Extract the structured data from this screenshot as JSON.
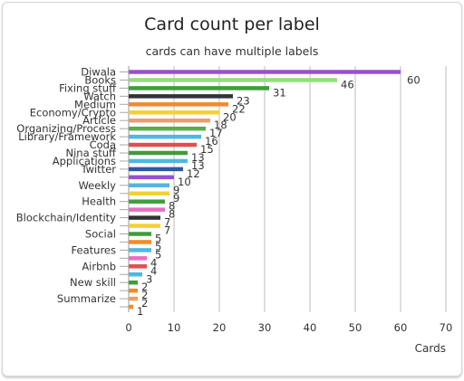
{
  "chart_data": {
    "type": "bar",
    "orientation": "horizontal",
    "title": "Card count per label",
    "subtitle": "cards can have multiple labels",
    "xlabel": "Cards",
    "ylabel": "",
    "xlim": [
      0,
      70
    ],
    "xticks": [
      0,
      10,
      20,
      30,
      40,
      50,
      60,
      70
    ],
    "grid": true,
    "legend": "none",
    "bars": [
      {
        "label": "Diwala",
        "value": 60,
        "color": "#9b4fd1"
      },
      {
        "label": "Books",
        "value": 46,
        "color": "#8fe07a"
      },
      {
        "label": "Fixing stuff",
        "value": 31,
        "color": "#3f9d3a"
      },
      {
        "label": "Watch",
        "value": 23,
        "color": "#333333"
      },
      {
        "label": "Medium",
        "value": 22,
        "color": "#f28c28"
      },
      {
        "label": "Economy/Crypto",
        "value": 20,
        "color": "#f5d033"
      },
      {
        "label": "Article",
        "value": 18,
        "color": "#e8a06a"
      },
      {
        "label": "Organizing/Process",
        "value": 17,
        "color": "#55b04a"
      },
      {
        "label": "Library/Framework",
        "value": 16,
        "color": "#4fb7e0"
      },
      {
        "label": "Coda",
        "value": 15,
        "color": "#e04f4f"
      },
      {
        "label": "Nina stuff",
        "value": 13,
        "color": "#3f9d3a"
      },
      {
        "label": "Applications",
        "value": 13,
        "color": "#4fb7e0"
      },
      {
        "label": "Twitter",
        "value": 12,
        "color": "#2b5b9e"
      },
      {
        "label": "",
        "value": 10,
        "color": "#9b4fd1"
      },
      {
        "label": "Weekly",
        "value": 9,
        "color": "#4fb7e0"
      },
      {
        "label": "",
        "value": 9,
        "color": "#f5d033"
      },
      {
        "label": "Health",
        "value": 8,
        "color": "#3f9d3a"
      },
      {
        "label": "",
        "value": 8,
        "color": "#e86fc2"
      },
      {
        "label": "Blockchain/Identity",
        "value": 7,
        "color": "#333333"
      },
      {
        "label": "",
        "value": 7,
        "color": "#f5d033"
      },
      {
        "label": "Social",
        "value": 5,
        "color": "#3f9d3a"
      },
      {
        "label": "",
        "value": 5,
        "color": "#f28c28"
      },
      {
        "label": "Features",
        "value": 5,
        "color": "#4fb7e0"
      },
      {
        "label": "",
        "value": 4,
        "color": "#e86fc2"
      },
      {
        "label": "Airbnb",
        "value": 4,
        "color": "#e04f4f"
      },
      {
        "label": "",
        "value": 3,
        "color": "#4fb7e0"
      },
      {
        "label": "New skill",
        "value": 2,
        "color": "#3f9d3a"
      },
      {
        "label": "",
        "value": 2,
        "color": "#f28c28"
      },
      {
        "label": "Summarize",
        "value": 2,
        "color": "#e8a06a"
      },
      {
        "label": "",
        "value": 1,
        "color": "#f28c28"
      }
    ]
  }
}
